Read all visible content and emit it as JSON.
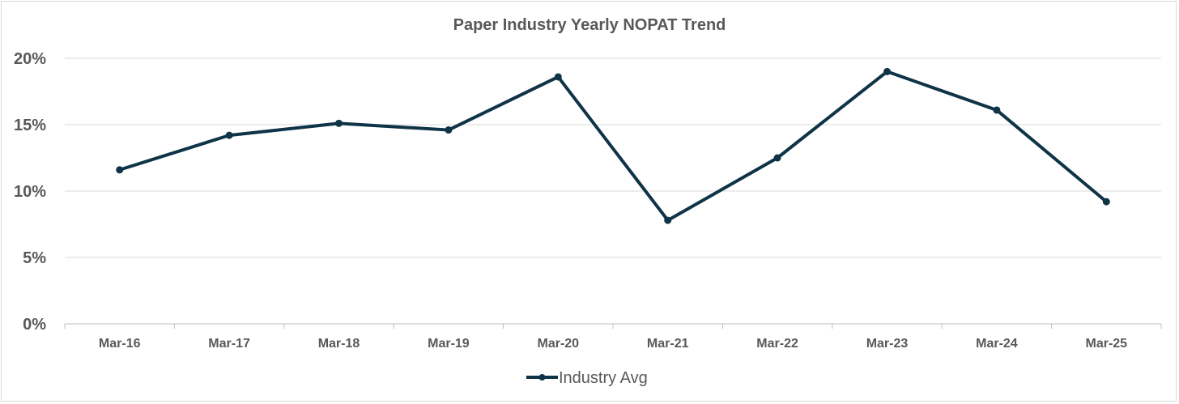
{
  "chart_data": {
    "type": "line",
    "title": "Paper Industry Yearly NOPAT  Trend",
    "xlabel": "",
    "ylabel": "",
    "categories": [
      "Mar-16",
      "Mar-17",
      "Mar-18",
      "Mar-19",
      "Mar-20",
      "Mar-21",
      "Mar-22",
      "Mar-23",
      "Mar-24",
      "Mar-25"
    ],
    "series": [
      {
        "name": "Industry Avg",
        "values": [
          11.6,
          14.2,
          15.1,
          14.6,
          18.6,
          7.8,
          12.5,
          19.0,
          16.1,
          9.2
        ]
      }
    ],
    "ylim": [
      0,
      20
    ],
    "yticks": [
      0,
      5,
      10,
      15,
      20
    ],
    "ytick_labels": [
      "0%",
      "5%",
      "10%",
      "15%",
      "20%"
    ],
    "grid": true,
    "legend_position": "bottom-center",
    "line_color": "#0f3347"
  }
}
